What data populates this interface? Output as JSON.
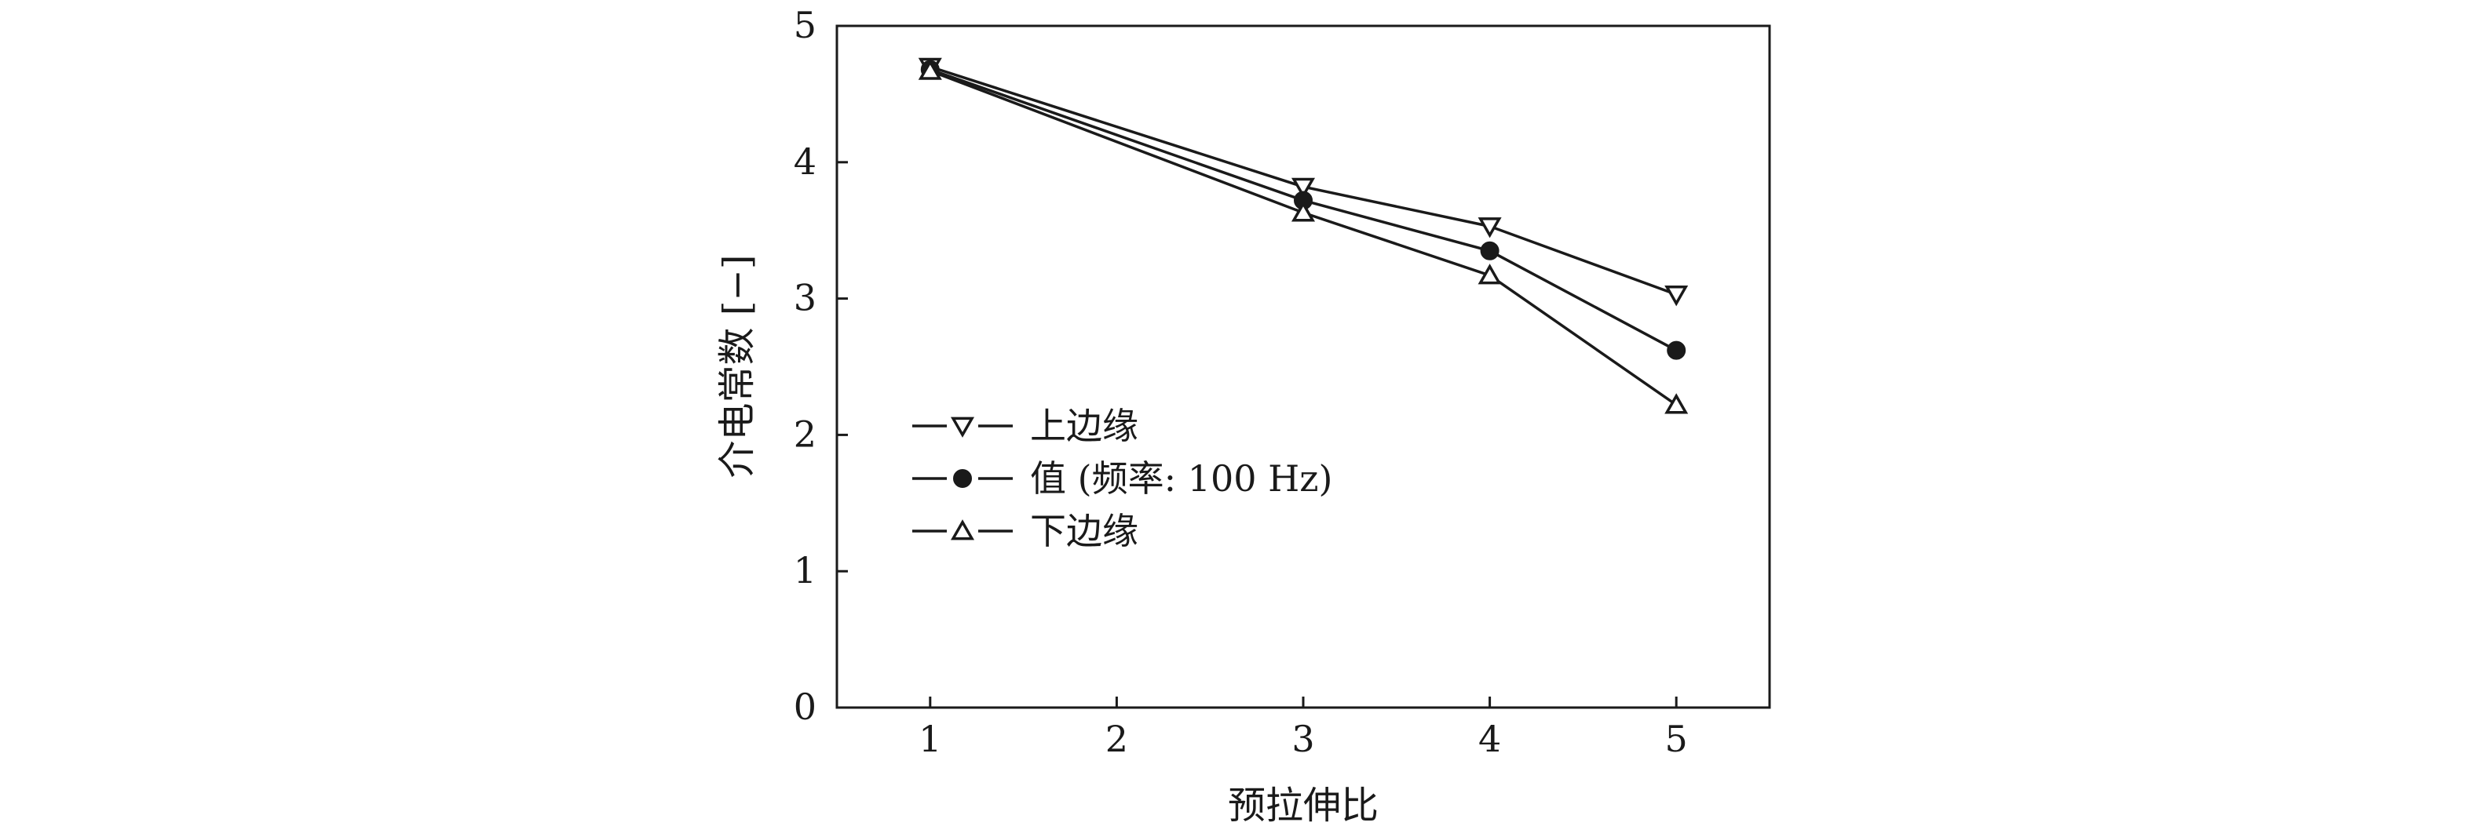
{
  "chart_data": {
    "type": "line",
    "xlabel": "预拉伸比",
    "ylabel": "介电常数 [−]",
    "xlim": [
      0.5,
      5.5
    ],
    "ylim": [
      0,
      5
    ],
    "xticks": [
      1,
      2,
      3,
      4,
      5
    ],
    "yticks": [
      0,
      1,
      2,
      3,
      4,
      5
    ],
    "grid": false,
    "legend_position": "lower-left",
    "series": [
      {
        "name": "上边缘",
        "marker": "triangle-down-open",
        "x": [
          1,
          3,
          4,
          5
        ],
        "y": [
          4.7,
          3.82,
          3.53,
          3.03
        ]
      },
      {
        "name": "值 (频率: 100 Hz)",
        "marker": "circle-filled",
        "x": [
          1,
          3,
          4,
          5
        ],
        "y": [
          4.68,
          3.72,
          3.35,
          2.62
        ]
      },
      {
        "name": "下边缘",
        "marker": "triangle-up-open",
        "x": [
          1,
          3,
          4,
          5
        ],
        "y": [
          4.67,
          3.63,
          3.17,
          2.22
        ]
      }
    ],
    "line_color": "#1a1a1a"
  }
}
